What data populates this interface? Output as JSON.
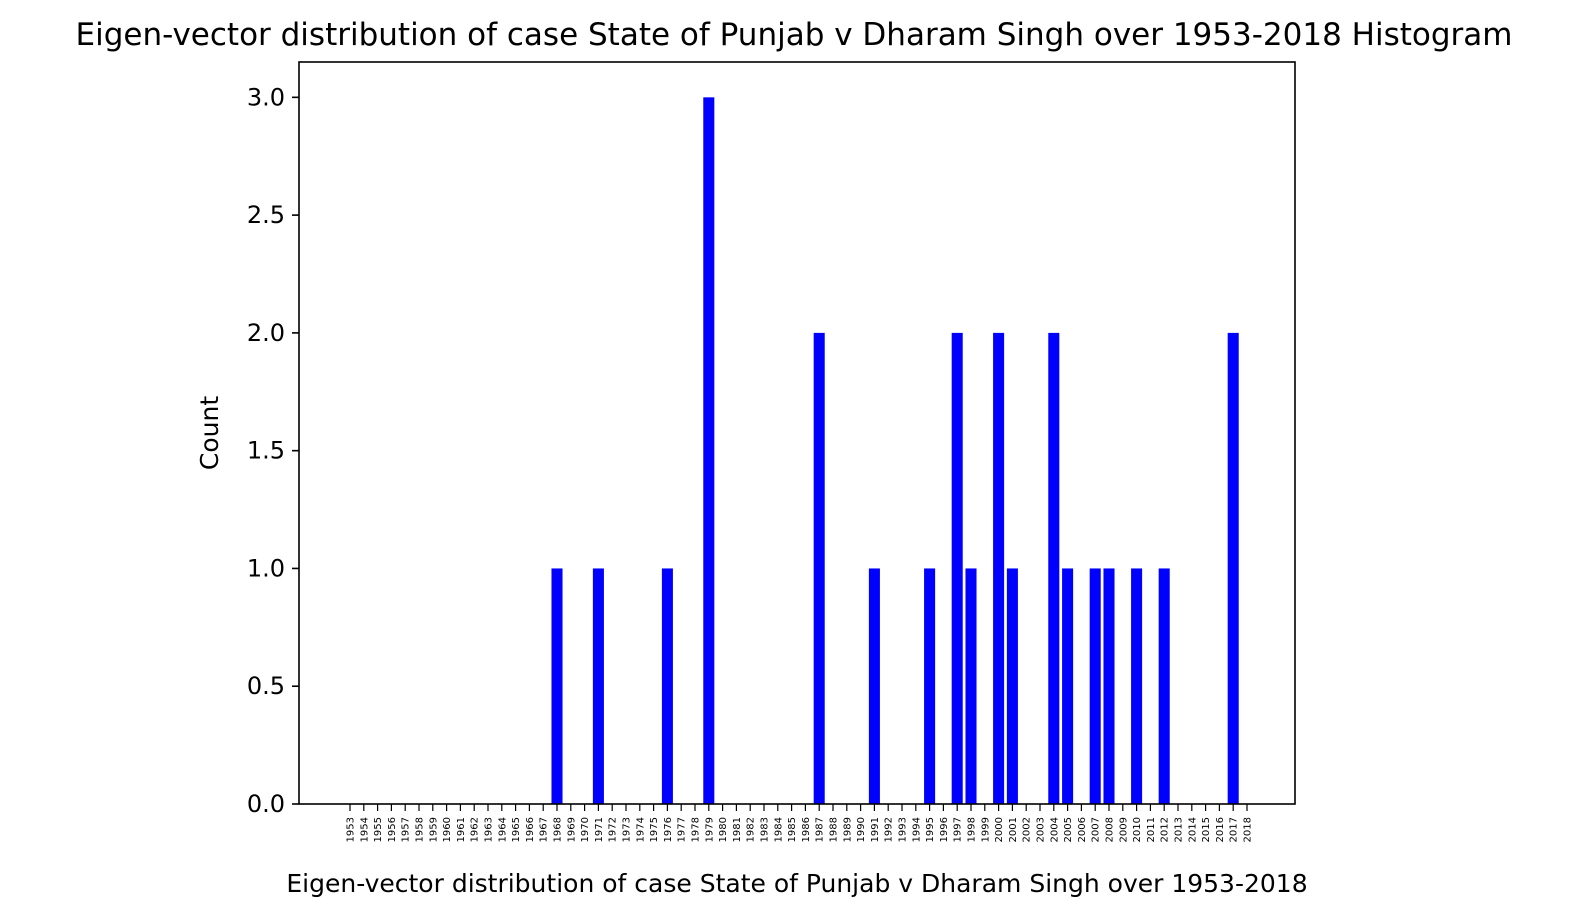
{
  "chart_data": {
    "type": "bar",
    "title": "Eigen-vector distribution of case State of Punjab v Dharam Singh over 1953-2018 Histogram",
    "xlabel": "Eigen-vector distribution of case State of Punjab v Dharam Singh over 1953-2018",
    "ylabel": "Count",
    "ylim": [
      0,
      3.15
    ],
    "yticks": [
      "0.0",
      "0.5",
      "1.0",
      "1.5",
      "2.0",
      "2.5",
      "3.0"
    ],
    "grid": false,
    "bar_color": "#0000ff",
    "categories": [
      "1953",
      "1954",
      "1955",
      "1956",
      "1957",
      "1958",
      "1959",
      "1960",
      "1961",
      "1962",
      "1963",
      "1964",
      "1965",
      "1966",
      "1967",
      "1968",
      "1969",
      "1970",
      "1971",
      "1972",
      "1973",
      "1974",
      "1975",
      "1976",
      "1977",
      "1978",
      "1979",
      "1980",
      "1981",
      "1982",
      "1983",
      "1984",
      "1985",
      "1986",
      "1987",
      "1988",
      "1989",
      "1990",
      "1991",
      "1992",
      "1993",
      "1994",
      "1995",
      "1996",
      "1997",
      "1998",
      "1999",
      "2000",
      "2001",
      "2002",
      "2003",
      "2004",
      "2005",
      "2006",
      "2007",
      "2008",
      "2009",
      "2010",
      "2011",
      "2012",
      "2013",
      "2014",
      "2015",
      "2016",
      "2017",
      "2018"
    ],
    "values": [
      0,
      0,
      0,
      0,
      0,
      0,
      0,
      0,
      0,
      0,
      0,
      0,
      0,
      0,
      0,
      1,
      0,
      0,
      1,
      0,
      0,
      0,
      0,
      1,
      0,
      0,
      3,
      0,
      0,
      0,
      0,
      0,
      0,
      0,
      2,
      0,
      0,
      0,
      1,
      0,
      0,
      0,
      1,
      0,
      2,
      1,
      0,
      2,
      1,
      0,
      0,
      2,
      1,
      0,
      1,
      1,
      0,
      1,
      0,
      1,
      0,
      0,
      0,
      0,
      2,
      0
    ]
  }
}
